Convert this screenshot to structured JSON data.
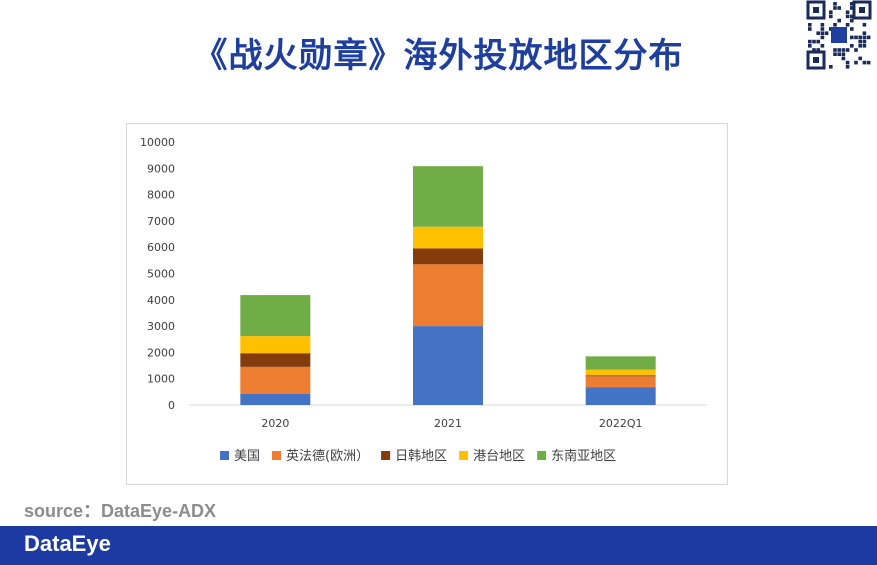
{
  "title": "《战火勋章》海外投放地区分布",
  "source": "source：DataEye-ADX",
  "footer_logo": "DataEye",
  "qr_icon": "qr-code-icon",
  "chart_data": {
    "type": "bar",
    "stacked": true,
    "categories": [
      "2020",
      "2021",
      "2022Q1"
    ],
    "ylim": [
      0,
      10000
    ],
    "yticks": [
      0,
      1000,
      2000,
      3000,
      4000,
      5000,
      6000,
      7000,
      8000,
      9000,
      10000
    ],
    "grid": false,
    "legend_position": "bottom",
    "series": [
      {
        "name": "美国",
        "color": "#4472c4",
        "values": [
          430,
          3000,
          680
        ]
      },
      {
        "name": "英法德(欧洲）",
        "color": "#ed7d31",
        "values": [
          1020,
          2350,
          410
        ]
      },
      {
        "name": "日韩地区",
        "color": "#843c0c",
        "values": [
          520,
          600,
          40
        ]
      },
      {
        "name": "港台地区",
        "color": "#ffc000",
        "values": [
          650,
          830,
          220
        ]
      },
      {
        "name": "东南亚地区",
        "color": "#70ad47",
        "values": [
          1560,
          2300,
          500
        ]
      }
    ]
  }
}
